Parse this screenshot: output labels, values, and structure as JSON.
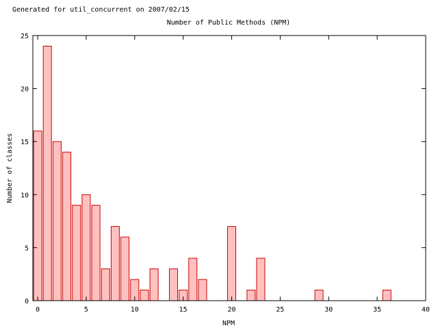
{
  "generated_note": "Generated for util_concurrent on 2007/02/15",
  "colors": {
    "bar_fill": "#ffc0c0",
    "bar_stroke": "#cc0000"
  },
  "chart_data": {
    "type": "bar",
    "title": "Number of Public Methods (NPM)",
    "xlabel": "NPM",
    "ylabel": "Number of classes",
    "xlim": [
      -0.5,
      40
    ],
    "ylim": [
      0,
      25
    ],
    "xticks": [
      0,
      5,
      10,
      15,
      20,
      25,
      30,
      35,
      40
    ],
    "yticks": [
      0,
      5,
      10,
      15,
      20,
      25
    ],
    "grid": false,
    "x": [
      0,
      1,
      2,
      3,
      4,
      5,
      6,
      7,
      8,
      9,
      10,
      11,
      12,
      14,
      15,
      16,
      17,
      20,
      22,
      23,
      29,
      36
    ],
    "values": [
      16,
      24,
      15,
      14,
      9,
      10,
      9,
      3,
      7,
      6,
      2,
      1,
      3,
      3,
      1,
      4,
      2,
      7,
      1,
      4,
      1,
      1
    ]
  }
}
